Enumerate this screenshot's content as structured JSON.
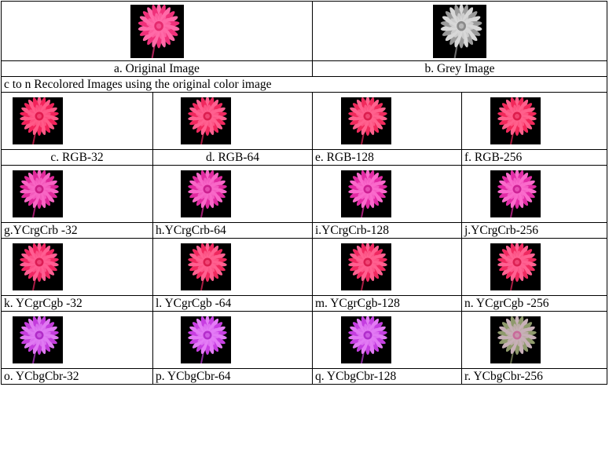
{
  "top": {
    "original": {
      "caption": "a. Original Image",
      "petal": "#f0307a",
      "petal_light": "#ff6aa8",
      "center": "#e52a6e"
    },
    "grey": {
      "caption": "b. Grey Image",
      "petal": "#9a9a9a",
      "petal_light": "#d8d8d8",
      "center": "#8a8a8a"
    }
  },
  "section_caption": "c to n Recolored Images using the original color image",
  "rows": [
    {
      "cells": [
        {
          "caption": "c. RGB-32",
          "petal": "#f2225a",
          "petal_light": "#ff5a88",
          "center": "#e01a4e",
          "align": "center"
        },
        {
          "caption": "d. RGB-64",
          "petal": "#f0285e",
          "petal_light": "#ff6090",
          "center": "#dc1e50",
          "align": "center"
        },
        {
          "caption": "e. RGB-128",
          "petal": "#f02a5c",
          "petal_light": "#ff628e",
          "center": "#dc1e4e",
          "align": "left"
        },
        {
          "caption": "f. RGB-256",
          "petal": "#f2285a",
          "petal_light": "#ff608c",
          "center": "#de1c4c",
          "align": "left"
        }
      ]
    },
    {
      "cells": [
        {
          "caption": "g.YCrgCrb -32",
          "petal": "#e0289a",
          "petal_light": "#f866c4",
          "center": "#cc1e88",
          "align": "left"
        },
        {
          "caption": "h.YCrgCrb-64",
          "petal": "#e02aa0",
          "petal_light": "#f868c8",
          "center": "#cc2090",
          "align": "left"
        },
        {
          "caption": "i.YCrgCrb-128",
          "petal": "#e22aa4",
          "petal_light": "#fa6acc",
          "center": "#ce2094",
          "align": "left"
        },
        {
          "caption": "j.YCrgCrb-256",
          "petal": "#e22ca6",
          "petal_light": "#fa6ccc",
          "center": "#ce2296",
          "align": "left"
        }
      ]
    },
    {
      "cells": [
        {
          "caption": "k. YCgrCgb -32",
          "petal": "#f02662",
          "petal_light": "#ff5e92",
          "center": "#dc1c54",
          "align": "left"
        },
        {
          "caption": "l. YCgrCgb -64",
          "petal": "#f0285e",
          "petal_light": "#ff6090",
          "center": "#dc1e50",
          "align": "left"
        },
        {
          "caption": "m. YCgrCgb-128",
          "petal": "#f02860",
          "petal_light": "#ff6090",
          "center": "#dc1e52",
          "align": "left"
        },
        {
          "caption": "n. YCgrCgb -256",
          "petal": "#f02a60",
          "petal_light": "#ff6292",
          "center": "#dc2052",
          "align": "left"
        }
      ]
    },
    {
      "cells": [
        {
          "caption": "o. YCbgCbr-32",
          "petal": "#c43cdc",
          "petal_light": "#e07af2",
          "center": "#b02cc8",
          "align": "left"
        },
        {
          "caption": "p. YCbgCbr-64",
          "petal": "#c83ee2",
          "petal_light": "#e47cf6",
          "center": "#b42ecc",
          "align": "left"
        },
        {
          "caption": "q. YCbgCbr-128",
          "petal": "#c43ee0",
          "petal_light": "#e27af4",
          "center": "#b02ecc",
          "align": "left"
        },
        {
          "caption": "r. YCbgCbr-256",
          "petal": "#8f9a6c",
          "petal_light": "#c8b0b8",
          "center": "#c86a9a",
          "align": "left"
        }
      ]
    }
  ]
}
